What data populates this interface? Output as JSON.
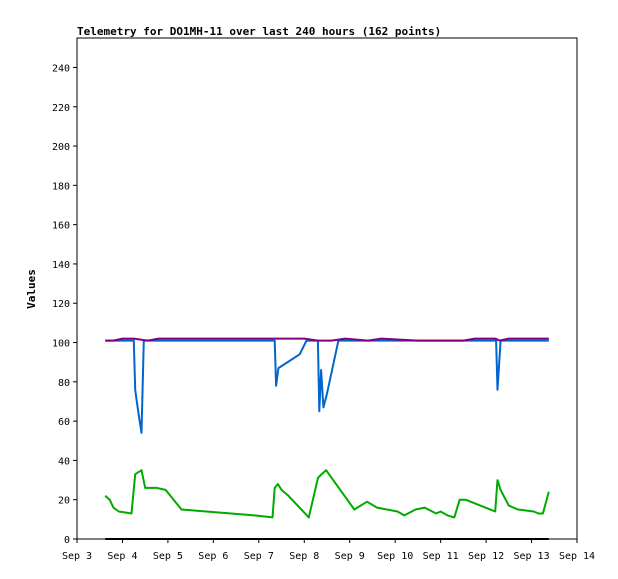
{
  "chart_data": {
    "type": "line",
    "title": "Telemetry for DO1MH-11 over last 240 hours (162 points)",
    "xlabel": "",
    "ylabel": "Values",
    "ylim": [
      0,
      255
    ],
    "yticks": [
      0,
      20,
      40,
      60,
      80,
      100,
      120,
      140,
      160,
      180,
      200,
      220,
      240
    ],
    "xlim": [
      3,
      14
    ],
    "x_tick_values": [
      3,
      4,
      5,
      6,
      7,
      8,
      9,
      10,
      11,
      12,
      13,
      14
    ],
    "x_tick_labels": [
      "Sep 3",
      "Sep 4",
      "Sep 5",
      "Sep 6",
      "Sep 7",
      "Sep 8",
      "Sep 9",
      "Sep 10",
      "Sep 11",
      "Sep 12",
      "Sep 13",
      "Sep 14"
    ],
    "grid": false,
    "legend": "none",
    "series": [
      {
        "color": "#000000",
        "x": [
          3.62,
          13.38
        ],
        "y": [
          0,
          0
        ]
      },
      {
        "color": "#0066cc",
        "x": [
          3.62,
          4.25,
          4.28,
          4.34,
          4.42,
          4.47,
          4.55,
          7.35,
          7.38,
          7.43,
          7.5,
          7.9,
          8.05,
          8.3,
          8.33,
          8.37,
          8.42,
          8.5,
          8.75,
          12.22,
          12.25,
          12.32,
          13.38
        ],
        "y": [
          101,
          101,
          76,
          66,
          54,
          101,
          101,
          101,
          78,
          87,
          88,
          94,
          101,
          101,
          65,
          86,
          67,
          74,
          101,
          101,
          76,
          101,
          101
        ]
      },
      {
        "color": "#800080",
        "x": [
          3.62,
          3.8,
          4.0,
          4.25,
          4.55,
          4.8,
          6.0,
          7.0,
          8.0,
          8.3,
          8.6,
          8.9,
          9.4,
          9.7,
          10.5,
          11.5,
          11.75,
          12.2,
          12.3,
          12.5,
          13.38
        ],
        "y": [
          101,
          101,
          102,
          102,
          101,
          102,
          102,
          102,
          102,
          101,
          101,
          102,
          101,
          102,
          101,
          101,
          102,
          102,
          101,
          102,
          102
        ]
      },
      {
        "color": "#00aa00",
        "x": [
          3.62,
          3.72,
          3.8,
          3.92,
          4.2,
          4.28,
          4.35,
          4.42,
          4.5,
          4.75,
          4.95,
          5.3,
          6.9,
          7.3,
          7.35,
          7.42,
          7.5,
          7.65,
          8.1,
          8.3,
          8.38,
          8.48,
          9.1,
          9.38,
          9.6,
          10.05,
          10.2,
          10.45,
          10.65,
          10.9,
          11.0,
          11.15,
          11.3,
          11.42,
          11.55,
          12.2,
          12.25,
          12.32,
          12.5,
          12.7,
          13.05,
          13.15,
          13.25,
          13.38
        ],
        "y": [
          22,
          20,
          16,
          14,
          13,
          33,
          34,
          35,
          26,
          26,
          25,
          15,
          12,
          11,
          26,
          28,
          25,
          22,
          11,
          31,
          33,
          35,
          15,
          19,
          16,
          14,
          12,
          15,
          16,
          13,
          14,
          12,
          11,
          20,
          20,
          14,
          30,
          25,
          17,
          15,
          14,
          13,
          13,
          24
        ]
      }
    ]
  }
}
